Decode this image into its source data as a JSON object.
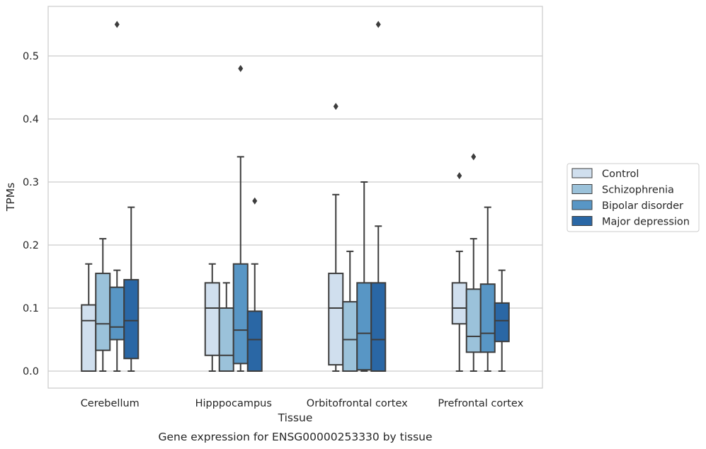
{
  "chart_data": {
    "type": "box",
    "caption": "Gene expression for ENSG00000253330 by tissue",
    "xlabel": "Tissue",
    "ylabel": "TPMs",
    "ylim": [
      -0.027,
      0.58
    ],
    "yticks": [
      "0.0",
      "0.1",
      "0.2",
      "0.3",
      "0.4",
      "0.5"
    ],
    "grid": "horizontal",
    "legend_position": "right",
    "categories": [
      "Cerebellum",
      "Hipppocampus",
      "Orbitofrontal cortex",
      "Prefrontal cortex"
    ],
    "series": [
      {
        "name": "Control",
        "color": "#d0dfee",
        "boxes": [
          {
            "whislo": 0.0,
            "q1": 0.0,
            "med": 0.08,
            "q3": 0.105,
            "whishi": 0.17,
            "fliers": []
          },
          {
            "whislo": 0.0,
            "q1": 0.025,
            "med": 0.1,
            "q3": 0.14,
            "whishi": 0.17,
            "fliers": []
          },
          {
            "whislo": 0.0,
            "q1": 0.01,
            "med": 0.1,
            "q3": 0.155,
            "whishi": 0.28,
            "fliers": [
              0.42
            ]
          },
          {
            "whislo": 0.0,
            "q1": 0.075,
            "med": 0.1,
            "q3": 0.14,
            "whishi": 0.19,
            "fliers": [
              0.31
            ]
          }
        ]
      },
      {
        "name": "Schizophrenia",
        "color": "#9bc2da",
        "boxes": [
          {
            "whislo": 0.0,
            "q1": 0.033,
            "med": 0.075,
            "q3": 0.155,
            "whishi": 0.21,
            "fliers": []
          },
          {
            "whislo": 0.0,
            "q1": 0.0,
            "med": 0.025,
            "q3": 0.1,
            "whishi": 0.14,
            "fliers": []
          },
          {
            "whislo": 0.0,
            "q1": 0.0,
            "med": 0.05,
            "q3": 0.11,
            "whishi": 0.19,
            "fliers": []
          },
          {
            "whislo": 0.0,
            "q1": 0.03,
            "med": 0.055,
            "q3": 0.13,
            "whishi": 0.21,
            "fliers": [
              0.34
            ]
          }
        ]
      },
      {
        "name": "Bipolar disorder",
        "color": "#5896c5",
        "boxes": [
          {
            "whislo": 0.0,
            "q1": 0.05,
            "med": 0.07,
            "q3": 0.133,
            "whishi": 0.16,
            "fliers": [
              0.55
            ]
          },
          {
            "whislo": 0.0,
            "q1": 0.012,
            "med": 0.065,
            "q3": 0.17,
            "whishi": 0.34,
            "fliers": [
              0.48
            ]
          },
          {
            "whislo": 0.0,
            "q1": 0.002,
            "med": 0.06,
            "q3": 0.14,
            "whishi": 0.3,
            "fliers": []
          },
          {
            "whislo": 0.0,
            "q1": 0.03,
            "med": 0.06,
            "q3": 0.138,
            "whishi": 0.26,
            "fliers": []
          }
        ]
      },
      {
        "name": "Major depression",
        "color": "#2a67a5",
        "boxes": [
          {
            "whislo": 0.0,
            "q1": 0.02,
            "med": 0.08,
            "q3": 0.145,
            "whishi": 0.26,
            "fliers": []
          },
          {
            "whislo": 0.0,
            "q1": 0.0,
            "med": 0.05,
            "q3": 0.095,
            "whishi": 0.17,
            "fliers": [
              0.27
            ]
          },
          {
            "whislo": 0.0,
            "q1": 0.0,
            "med": 0.05,
            "q3": 0.14,
            "whishi": 0.23,
            "fliers": [
              0.55
            ]
          },
          {
            "whislo": 0.0,
            "q1": 0.047,
            "med": 0.08,
            "q3": 0.108,
            "whishi": 0.16,
            "fliers": []
          }
        ]
      }
    ]
  }
}
